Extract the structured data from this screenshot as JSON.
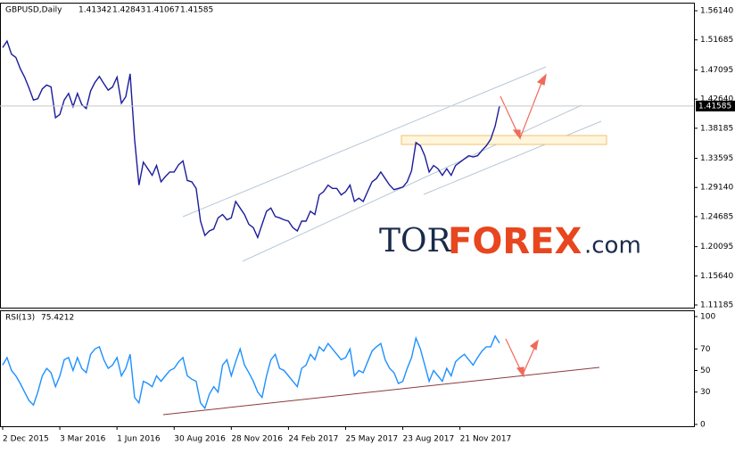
{
  "chart_data": {
    "type": "line",
    "ohlc": [
      1.41342,
      1.42843,
      1.41067,
      1.41585
    ],
    "annotations": [
      "TOR",
      "FOREX",
      ".com"
    ],
    "categories": [
      "2 Dec 2015",
      null,
      null,
      null,
      null,
      null,
      null,
      null,
      null,
      null,
      null,
      null,
      null,
      "3 Mar 2016",
      null,
      null,
      null,
      null,
      null,
      null,
      null,
      null,
      null,
      null,
      null,
      null,
      "1 Jun 2016",
      null,
      null,
      null,
      null,
      null,
      null,
      null,
      null,
      null,
      null,
      null,
      null,
      "30 Aug 2016",
      null,
      null,
      null,
      null,
      null,
      null,
      null,
      null,
      null,
      null,
      null,
      null,
      "28 Nov 2016",
      null,
      null,
      null,
      null,
      null,
      null,
      null,
      null,
      null,
      null,
      null,
      null,
      "24 Feb 2017",
      null,
      null,
      null,
      null,
      null,
      null,
      null,
      null,
      null,
      null,
      null,
      null,
      "25 May 2017",
      null,
      null,
      null,
      null,
      null,
      null,
      null,
      null,
      null,
      null,
      null,
      null,
      "23 Aug 2017",
      null,
      null,
      null,
      null,
      null,
      null,
      null,
      null,
      null,
      null,
      null,
      null,
      "21 Nov 2017",
      null,
      null,
      null,
      null,
      null,
      null,
      null,
      null,
      null
    ],
    "series": [
      {
        "name": "GBPUSD,Daily",
        "color": "#1c1c9c",
        "values": [
          1.505,
          1.515,
          1.495,
          1.49,
          1.473,
          1.46,
          1.443,
          1.425,
          1.427,
          1.442,
          1.448,
          1.445,
          1.398,
          1.403,
          1.425,
          1.435,
          1.415,
          1.435,
          1.418,
          1.412,
          1.439,
          1.452,
          1.461,
          1.45,
          1.44,
          1.445,
          1.46,
          1.42,
          1.43,
          1.465,
          1.365,
          1.295,
          1.33,
          1.32,
          1.31,
          1.325,
          1.3,
          1.308,
          1.315,
          1.315,
          1.326,
          1.332,
          1.302,
          1.3,
          1.29,
          1.24,
          1.218,
          1.225,
          1.228,
          1.245,
          1.25,
          1.242,
          1.245,
          1.27,
          1.26,
          1.25,
          1.235,
          1.23,
          1.215,
          1.235,
          1.255,
          1.26,
          1.247,
          1.245,
          1.242,
          1.24,
          1.23,
          1.225,
          1.24,
          1.24,
          1.255,
          1.25,
          1.28,
          1.285,
          1.295,
          1.29,
          1.29,
          1.28,
          1.285,
          1.295,
          1.27,
          1.275,
          1.27,
          1.285,
          1.3,
          1.305,
          1.315,
          1.305,
          1.295,
          1.288,
          1.29,
          1.292,
          1.3,
          1.317,
          1.36,
          1.355,
          1.34,
          1.315,
          1.325,
          1.32,
          1.31,
          1.32,
          1.31,
          1.325,
          1.33,
          1.335,
          1.34,
          1.338,
          1.34,
          1.348,
          1.355,
          1.365,
          1.385,
          1.41585
        ]
      },
      {
        "name": "RSI(13)",
        "color": "#1e90ff",
        "axis": "y2",
        "last_value": 75.4212,
        "values": [
          55,
          62,
          50,
          45,
          38,
          30,
          22,
          18,
          30,
          45,
          52,
          48,
          35,
          45,
          60,
          62,
          50,
          62,
          52,
          48,
          65,
          70,
          72,
          60,
          52,
          55,
          62,
          45,
          52,
          65,
          25,
          20,
          40,
          38,
          35,
          45,
          40,
          45,
          50,
          52,
          58,
          62,
          45,
          42,
          40,
          20,
          15,
          28,
          35,
          30,
          55,
          60,
          45,
          58,
          70,
          55,
          48,
          40,
          30,
          25,
          45,
          60,
          65,
          52,
          50,
          45,
          40,
          35,
          52,
          55,
          65,
          60,
          72,
          68,
          75,
          70,
          65,
          60,
          62,
          70,
          45,
          50,
          48,
          58,
          68,
          72,
          75,
          60,
          52,
          48,
          38,
          40,
          52,
          62,
          80,
          70,
          55,
          40,
          50,
          45,
          40,
          52,
          45,
          58,
          62,
          65,
          60,
          55,
          62,
          68,
          72,
          72,
          82,
          75.4212
        ]
      }
    ],
    "ylim": [
      1.1078,
      1.5737
    ],
    "yticks": [
      {
        "value": 1.5614,
        "label": "1.56140"
      },
      1.51685,
      1.47095,
      {
        "value": 1.4264,
        "label": "1.42640"
      },
      1.38185,
      1.33595,
      {
        "value": 1.2914,
        "label": "1.29140"
      },
      1.24685,
      1.20095,
      {
        "value": 1.1564,
        "label": "1.15640"
      },
      1.11185
    ],
    "y2lim": [
      -1.7,
      105.8
    ],
    "y2ticks": [
      100,
      70,
      50,
      30,
      0
    ]
  }
}
